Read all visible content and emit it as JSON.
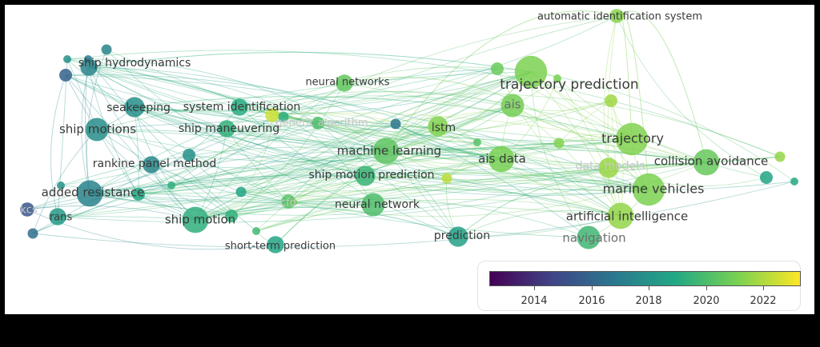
{
  "diagram": {
    "nodes": [
      {
        "label": "automatic identification system",
        "tone": "normal",
        "year": 2021.6,
        "w": 2
      },
      {
        "label": "ship hydrodynamics",
        "tone": "normal",
        "year": 2017.5,
        "w": 3
      },
      {
        "label": "neural networks",
        "tone": "normal",
        "year": 2020.8,
        "w": 3
      },
      {
        "label": "trajectory prediction",
        "tone": "normal",
        "year": 2021.4,
        "w": 8
      },
      {
        "label": "ais",
        "tone": "mid",
        "year": 2021.2,
        "w": 5
      },
      {
        "label": "seakeeping",
        "tone": "normal",
        "year": 2018.0,
        "w": 4
      },
      {
        "label": "system identification",
        "tone": "normal",
        "year": 2019.3,
        "w": 3
      },
      {
        "label": "genetic algorithm",
        "tone": "faint",
        "year": 2022.8,
        "w": 2
      },
      {
        "label": "ship motions",
        "tone": "normal",
        "year": 2017.9,
        "w": 5
      },
      {
        "label": "ship maneuvering",
        "tone": "normal",
        "year": 2019.6,
        "w": 3
      },
      {
        "label": "lstm",
        "tone": "normal",
        "year": 2021.5,
        "w": 4
      },
      {
        "label": "trajectory",
        "tone": "normal",
        "year": 2021.5,
        "w": 8
      },
      {
        "label": "machine learning",
        "tone": "normal",
        "year": 2020.7,
        "w": 6
      },
      {
        "label": "ais data",
        "tone": "normal",
        "year": 2021.3,
        "w": 6
      },
      {
        "label": "data models",
        "tone": "faint",
        "year": 2021.9,
        "w": 4
      },
      {
        "label": "collision avoidance",
        "tone": "normal",
        "year": 2020.9,
        "w": 6
      },
      {
        "label": "rankine panel method",
        "tone": "normal",
        "year": 2017.6,
        "w": 3
      },
      {
        "label": "ship motion prediction",
        "tone": "normal",
        "year": 2019.8,
        "w": 4
      },
      {
        "label": "added resistance",
        "tone": "normal",
        "year": 2017.4,
        "w": 6
      },
      {
        "label": "marine vehicles",
        "tone": "normal",
        "year": 2021.4,
        "w": 8
      },
      {
        "label": "kcs",
        "tone": "faint",
        "year": 2015.5,
        "w": 2
      },
      {
        "label": "cfd",
        "tone": "faint",
        "year": 2020.5,
        "w": 2
      },
      {
        "label": "neural network",
        "tone": "normal",
        "year": 2020.3,
        "w": 5
      },
      {
        "label": "rans",
        "tone": "normal",
        "year": 2018.5,
        "w": 3
      },
      {
        "label": "ship motion",
        "tone": "normal",
        "year": 2019.5,
        "w": 6
      },
      {
        "label": "artificial intelligence",
        "tone": "normal",
        "year": 2021.8,
        "w": 6
      },
      {
        "label": "prediction",
        "tone": "normal",
        "year": 2018.8,
        "w": 4
      },
      {
        "label": "navigation",
        "tone": "mid",
        "year": 2019.9,
        "w": 5
      },
      {
        "label": "short-term prediction",
        "tone": "normal",
        "year": 2019.0,
        "w": 3
      }
    ]
  },
  "legend": {
    "colorscale": [
      "#440154",
      "#414487",
      "#2a788e",
      "#22a884",
      "#7ad151",
      "#fde725"
    ],
    "range": [
      2012.5,
      2023.6
    ],
    "ticks": [
      "2014",
      "2016",
      "2018",
      "2020",
      "2022"
    ]
  }
}
